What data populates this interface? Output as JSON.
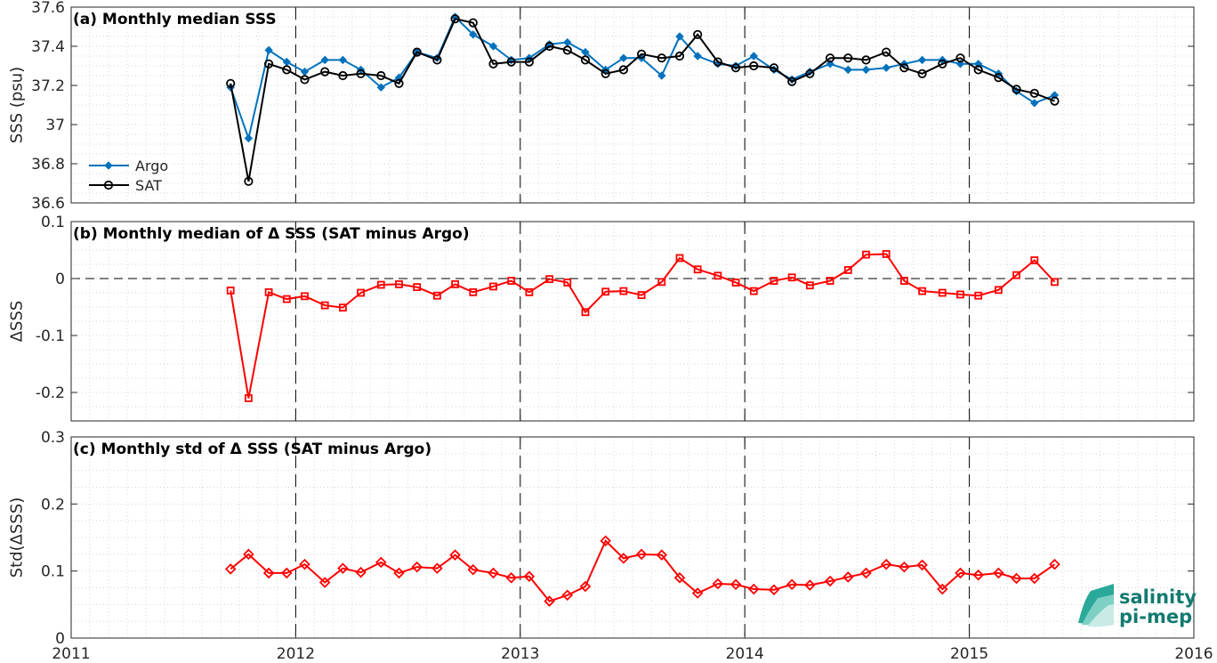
{
  "chart_data": [
    {
      "type": "line",
      "title": "(a) Monthly median SSS",
      "ylabel": "SSS (psu)",
      "xlim": [
        2011,
        2016
      ],
      "ylim": [
        36.6,
        37.6
      ],
      "yticks": [
        "36.6",
        "36.8",
        "37",
        "37.2",
        "37.4",
        "37.6"
      ],
      "grid": true,
      "legend_position": "lower-left",
      "x": [
        2011.71,
        2011.79,
        2011.88,
        2011.96,
        2012.04,
        2012.13,
        2012.21,
        2012.29,
        2012.38,
        2012.46,
        2012.54,
        2012.63,
        2012.71,
        2012.79,
        2012.88,
        2012.96,
        2013.04,
        2013.13,
        2013.21,
        2013.29,
        2013.38,
        2013.46,
        2013.54,
        2013.63,
        2013.71,
        2013.79,
        2013.88,
        2013.96,
        2014.04,
        2014.13,
        2014.21,
        2014.29,
        2014.38,
        2014.46,
        2014.54,
        2014.63,
        2014.71,
        2014.79,
        2014.88,
        2014.96,
        2015.04,
        2015.13,
        2015.21,
        2015.29,
        2015.38
      ],
      "series": [
        {
          "name": "Argo",
          "color": "#0072bd",
          "marker": "diamond",
          "values": [
            37.19,
            36.93,
            37.38,
            37.32,
            37.27,
            37.33,
            37.33,
            37.28,
            37.19,
            37.24,
            37.37,
            37.34,
            37.55,
            37.46,
            37.4,
            37.33,
            37.34,
            37.41,
            37.42,
            37.37,
            37.28,
            37.34,
            37.34,
            37.25,
            37.45,
            37.35,
            37.31,
            37.3,
            37.35,
            37.28,
            37.23,
            37.27,
            37.31,
            37.28,
            37.28,
            37.29,
            37.31,
            37.33,
            37.33,
            37.31,
            37.31,
            37.26,
            37.17,
            37.11,
            37.15
          ]
        },
        {
          "name": "SAT",
          "color": "#000000",
          "marker": "circle",
          "values": [
            37.21,
            36.71,
            37.31,
            37.28,
            37.23,
            37.27,
            37.25,
            37.26,
            37.25,
            37.21,
            37.37,
            37.33,
            37.54,
            37.52,
            37.31,
            37.32,
            37.32,
            37.4,
            37.38,
            37.33,
            37.26,
            37.28,
            37.36,
            37.34,
            37.35,
            37.46,
            37.32,
            37.29,
            37.3,
            37.29,
            37.22,
            37.26,
            37.34,
            37.34,
            37.33,
            37.37,
            37.29,
            37.26,
            37.31,
            37.34,
            37.28,
            37.24,
            37.18,
            37.16,
            37.12
          ]
        }
      ]
    },
    {
      "type": "line",
      "title": "(b) Monthly median of Δ SSS (SAT minus Argo)",
      "ylabel": "ΔSSS",
      "xlim": [
        2011,
        2016
      ],
      "ylim": [
        -0.25,
        0.1
      ],
      "yticks": [
        "-0.2",
        "-0.1",
        "0",
        "0.1"
      ],
      "grid": true,
      "reference_line": 0,
      "x": [
        2011.71,
        2011.79,
        2011.88,
        2011.96,
        2012.04,
        2012.13,
        2012.21,
        2012.29,
        2012.38,
        2012.46,
        2012.54,
        2012.63,
        2012.71,
        2012.79,
        2012.88,
        2012.96,
        2013.04,
        2013.13,
        2013.21,
        2013.29,
        2013.38,
        2013.46,
        2013.54,
        2013.63,
        2013.71,
        2013.79,
        2013.88,
        2013.96,
        2014.04,
        2014.13,
        2014.21,
        2014.29,
        2014.38,
        2014.46,
        2014.54,
        2014.63,
        2014.71,
        2014.79,
        2014.88,
        2014.96,
        2015.04,
        2015.13,
        2015.21,
        2015.29,
        2015.38
      ],
      "series": [
        {
          "color": "#ff0000",
          "marker": "square",
          "values": [
            -0.021,
            -0.21,
            -0.024,
            -0.036,
            -0.031,
            -0.047,
            -0.051,
            -0.025,
            -0.011,
            -0.01,
            -0.015,
            -0.03,
            -0.01,
            -0.024,
            -0.014,
            -0.004,
            -0.024,
            -0.001,
            -0.007,
            -0.059,
            -0.023,
            -0.022,
            -0.029,
            -0.006,
            0.036,
            0.016,
            0.005,
            -0.007,
            -0.022,
            -0.004,
            0.002,
            -0.012,
            -0.004,
            0.015,
            0.042,
            0.043,
            -0.004,
            -0.022,
            -0.025,
            -0.028,
            -0.03,
            -0.02,
            0.006,
            0.032,
            -0.006
          ]
        }
      ]
    },
    {
      "type": "line",
      "title": "(c) Monthly std of Δ SSS (SAT minus Argo)",
      "ylabel": "Std(ΔSSS)",
      "xlim": [
        2011,
        2016
      ],
      "ylim": [
        0,
        0.3
      ],
      "yticks": [
        "0",
        "0.1",
        "0.2",
        "0.3"
      ],
      "xticks": [
        "2011",
        "2012",
        "2013",
        "2014",
        "2015",
        "2016"
      ],
      "grid": true,
      "x": [
        2011.71,
        2011.79,
        2011.88,
        2011.96,
        2012.04,
        2012.13,
        2012.21,
        2012.29,
        2012.38,
        2012.46,
        2012.54,
        2012.63,
        2012.71,
        2012.79,
        2012.88,
        2012.96,
        2013.04,
        2013.13,
        2013.21,
        2013.29,
        2013.38,
        2013.46,
        2013.54,
        2013.63,
        2013.71,
        2013.79,
        2013.88,
        2013.96,
        2014.04,
        2014.13,
        2014.21,
        2014.29,
        2014.38,
        2014.46,
        2014.54,
        2014.63,
        2014.71,
        2014.79,
        2014.88,
        2014.96,
        2015.04,
        2015.13,
        2015.21,
        2015.29,
        2015.38
      ],
      "series": [
        {
          "color": "#ff0000",
          "marker": "diamond",
          "values": [
            0.103,
            0.125,
            0.097,
            0.097,
            0.11,
            0.083,
            0.104,
            0.098,
            0.113,
            0.097,
            0.106,
            0.104,
            0.124,
            0.102,
            0.097,
            0.09,
            0.092,
            0.055,
            0.064,
            0.077,
            0.145,
            0.119,
            0.125,
            0.124,
            0.09,
            0.067,
            0.081,
            0.08,
            0.073,
            0.072,
            0.08,
            0.079,
            0.085,
            0.091,
            0.097,
            0.11,
            0.106,
            0.109,
            0.073,
            0.097,
            0.094,
            0.097,
            0.089,
            0.089,
            0.11
          ]
        }
      ]
    }
  ],
  "logo": {
    "line1": "salinity",
    "line2": "pi-mep"
  }
}
